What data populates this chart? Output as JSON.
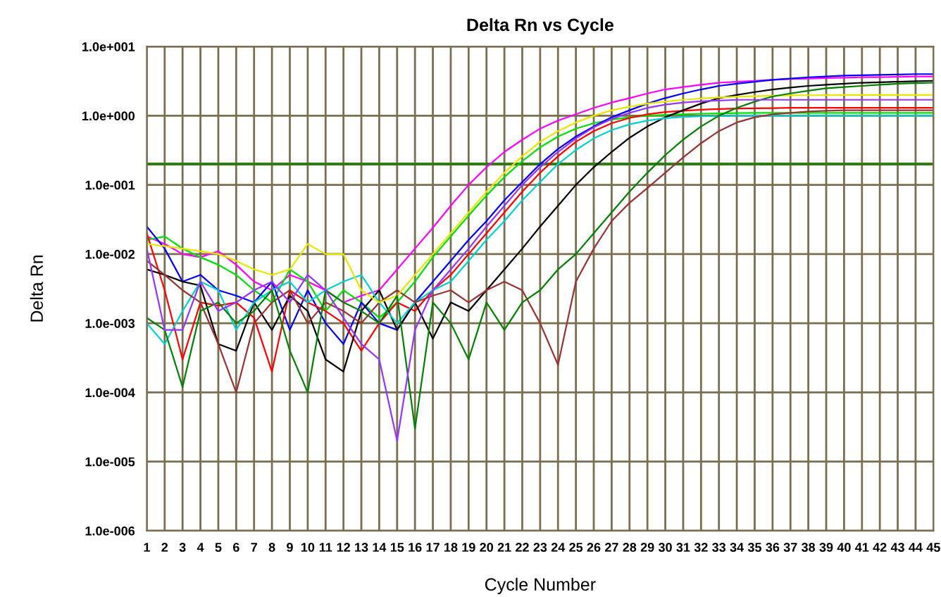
{
  "chart_data": {
    "type": "line",
    "title": "Delta Rn vs Cycle",
    "xlabel": "Cycle Number",
    "ylabel": "Delta Rn",
    "x": [
      1,
      2,
      3,
      4,
      5,
      6,
      7,
      8,
      9,
      10,
      11,
      12,
      13,
      14,
      15,
      16,
      17,
      18,
      19,
      20,
      21,
      22,
      23,
      24,
      25,
      26,
      27,
      28,
      29,
      30,
      31,
      32,
      33,
      34,
      35,
      36,
      37,
      38,
      39,
      40,
      41,
      42,
      43,
      44,
      45
    ],
    "xlim": [
      1,
      45
    ],
    "xticks": [
      1,
      2,
      3,
      4,
      5,
      6,
      7,
      8,
      9,
      10,
      11,
      12,
      13,
      14,
      15,
      16,
      17,
      18,
      19,
      20,
      21,
      22,
      23,
      24,
      25,
      26,
      27,
      28,
      29,
      30,
      31,
      32,
      33,
      34,
      35,
      36,
      37,
      38,
      39,
      40,
      41,
      42,
      43,
      44,
      45
    ],
    "log": true,
    "ylim": [
      1e-06,
      10
    ],
    "yticks": [
      {
        "value": 1e-06,
        "label": "1.0e-006"
      },
      {
        "value": 1e-05,
        "label": "1.0e-005"
      },
      {
        "value": 0.0001,
        "label": "1.0e-004"
      },
      {
        "value": 0.001,
        "label": "1.0e-003"
      },
      {
        "value": 0.01,
        "label": "1.0e-002"
      },
      {
        "value": 0.1,
        "label": "1.0e-001"
      },
      {
        "value": 1,
        "label": "1.0e+000"
      },
      {
        "value": 10,
        "label": "1.0e+001"
      }
    ],
    "grid": true,
    "marker": "none",
    "line_style": "solid",
    "ref_lines": [
      {
        "axis": "y",
        "value": 0.2,
        "color": "#2e7d0f",
        "line_style": "solid"
      }
    ],
    "series": [
      {
        "color": "#ff00ff",
        "values": [
          0.018,
          0.014,
          0.01,
          0.009,
          0.011,
          0.007,
          0.004,
          0.003,
          0.005,
          0.004,
          0.003,
          0.002,
          0.0025,
          0.003,
          0.006,
          0.012,
          0.024,
          0.05,
          0.1,
          0.18,
          0.3,
          0.45,
          0.65,
          0.85,
          1.05,
          1.3,
          1.55,
          1.8,
          2.1,
          2.4,
          2.6,
          2.8,
          3.0,
          3.1,
          3.2,
          3.3,
          3.4,
          3.45,
          3.5,
          3.55,
          3.6,
          3.6,
          3.65,
          3.7,
          3.7
        ]
      },
      {
        "color": "#00e000",
        "values": [
          0.016,
          0.018,
          0.012,
          0.009,
          0.007,
          0.005,
          0.003,
          0.002,
          0.006,
          0.004,
          0.0015,
          0.003,
          0.002,
          0.0012,
          0.002,
          0.004,
          0.009,
          0.018,
          0.036,
          0.07,
          0.13,
          0.22,
          0.35,
          0.5,
          0.65,
          0.78,
          0.88,
          0.95,
          1.0,
          1.03,
          1.05,
          1.07,
          1.08,
          1.09,
          1.1,
          1.1,
          1.1,
          1.1,
          1.1,
          1.1,
          1.1,
          1.1,
          1.1,
          1.1,
          1.1
        ]
      },
      {
        "color": "#0000ff",
        "values": [
          0.025,
          0.012,
          0.004,
          0.005,
          0.003,
          0.0025,
          0.002,
          0.004,
          0.0008,
          0.003,
          0.001,
          0.0005,
          0.002,
          0.001,
          0.0008,
          0.002,
          0.004,
          0.008,
          0.016,
          0.03,
          0.06,
          0.11,
          0.2,
          0.33,
          0.5,
          0.7,
          0.95,
          1.2,
          1.5,
          1.8,
          2.1,
          2.4,
          2.7,
          2.9,
          3.1,
          3.3,
          3.45,
          3.6,
          3.7,
          3.8,
          3.85,
          3.9,
          3.95,
          4.0,
          4.0
        ]
      },
      {
        "color": "#ff0000",
        "values": [
          0.02,
          0.003,
          0.0003,
          0.002,
          0.0018,
          0.002,
          0.0012,
          0.0002,
          0.003,
          0.002,
          0.0015,
          0.001,
          0.0004,
          0.001,
          0.002,
          0.0015,
          0.003,
          0.005,
          0.01,
          0.02,
          0.04,
          0.08,
          0.15,
          0.26,
          0.42,
          0.6,
          0.78,
          0.93,
          1.05,
          1.13,
          1.18,
          1.22,
          1.25,
          1.27,
          1.28,
          1.29,
          1.3,
          1.3,
          1.3,
          1.3,
          1.3,
          1.3,
          1.3,
          1.3,
          1.3
        ]
      },
      {
        "color": "#000000",
        "values": [
          0.006,
          0.005,
          0.004,
          0.0035,
          0.0005,
          0.0004,
          0.002,
          0.0008,
          0.0025,
          0.0015,
          0.0003,
          0.0002,
          0.0015,
          0.003,
          0.0008,
          0.002,
          0.0006,
          0.002,
          0.0015,
          0.003,
          0.006,
          0.012,
          0.025,
          0.05,
          0.1,
          0.18,
          0.3,
          0.48,
          0.7,
          0.95,
          1.2,
          1.5,
          1.8,
          2.0,
          2.2,
          2.4,
          2.55,
          2.7,
          2.8,
          2.9,
          3.0,
          3.05,
          3.1,
          3.15,
          3.2
        ]
      },
      {
        "color": "#00d0d0",
        "values": [
          0.001,
          0.0005,
          0.0015,
          0.004,
          0.003,
          0.0008,
          0.002,
          0.003,
          0.004,
          0.002,
          0.003,
          0.004,
          0.005,
          0.002,
          0.001,
          0.002,
          0.003,
          0.004,
          0.008,
          0.016,
          0.03,
          0.06,
          0.11,
          0.2,
          0.32,
          0.47,
          0.62,
          0.75,
          0.85,
          0.92,
          0.96,
          0.98,
          0.99,
          1.0,
          1.0,
          1.0,
          1.0,
          1.0,
          1.0,
          1.0,
          1.0,
          1.0,
          1.0,
          1.0,
          1.0
        ]
      },
      {
        "color": "#993333",
        "values": [
          0.008,
          0.005,
          0.003,
          0.002,
          0.0005,
          0.0001,
          0.001,
          0.002,
          0.003,
          0.001,
          0.002,
          0.0015,
          0.001,
          0.002,
          0.003,
          0.002,
          0.0025,
          0.003,
          0.002,
          0.003,
          0.004,
          0.003,
          0.001,
          0.00025,
          0.004,
          0.012,
          0.03,
          0.055,
          0.09,
          0.15,
          0.25,
          0.4,
          0.6,
          0.8,
          0.95,
          1.05,
          1.1,
          1.15,
          1.18,
          1.2,
          1.2,
          1.2,
          1.2,
          1.2,
          1.2
        ]
      },
      {
        "color": "#e6e600",
        "values": [
          0.014,
          0.013,
          0.012,
          0.011,
          0.01,
          0.008,
          0.006,
          0.005,
          0.006,
          0.014,
          0.01,
          0.01,
          0.003,
          0.002,
          0.0025,
          0.005,
          0.01,
          0.02,
          0.04,
          0.08,
          0.15,
          0.26,
          0.42,
          0.6,
          0.8,
          1.0,
          1.2,
          1.35,
          1.5,
          1.6,
          1.7,
          1.78,
          1.84,
          1.88,
          1.92,
          1.95,
          1.97,
          1.98,
          1.99,
          2.0,
          2.0,
          2.0,
          2.0,
          2.0,
          2.0
        ]
      },
      {
        "color": "#008000",
        "values": [
          0.0012,
          0.0008,
          0.00012,
          0.0015,
          0.002,
          0.001,
          0.0015,
          0.003,
          0.0004,
          0.0001,
          0.003,
          0.002,
          0.0015,
          0.001,
          0.0025,
          3e-05,
          0.002,
          0.001,
          0.0003,
          0.002,
          0.0008,
          0.002,
          0.003,
          0.006,
          0.01,
          0.02,
          0.04,
          0.08,
          0.15,
          0.27,
          0.45,
          0.7,
          1.0,
          1.3,
          1.6,
          1.9,
          2.1,
          2.3,
          2.5,
          2.6,
          2.7,
          2.8,
          2.9,
          2.95,
          3.0
        ]
      },
      {
        "color": "#9933ff",
        "values": [
          0.012,
          0.0008,
          0.0008,
          0.004,
          0.0015,
          0.002,
          0.003,
          0.004,
          0.002,
          0.005,
          0.003,
          0.0012,
          0.0005,
          0.0003,
          2e-05,
          0.0008,
          0.003,
          0.006,
          0.012,
          0.025,
          0.05,
          0.1,
          0.18,
          0.3,
          0.47,
          0.68,
          0.9,
          1.1,
          1.3,
          1.45,
          1.55,
          1.62,
          1.66,
          1.7,
          1.7,
          1.7,
          1.7,
          1.7,
          1.7,
          1.7,
          1.7,
          1.7,
          1.7,
          1.7,
          1.7
        ]
      }
    ]
  }
}
